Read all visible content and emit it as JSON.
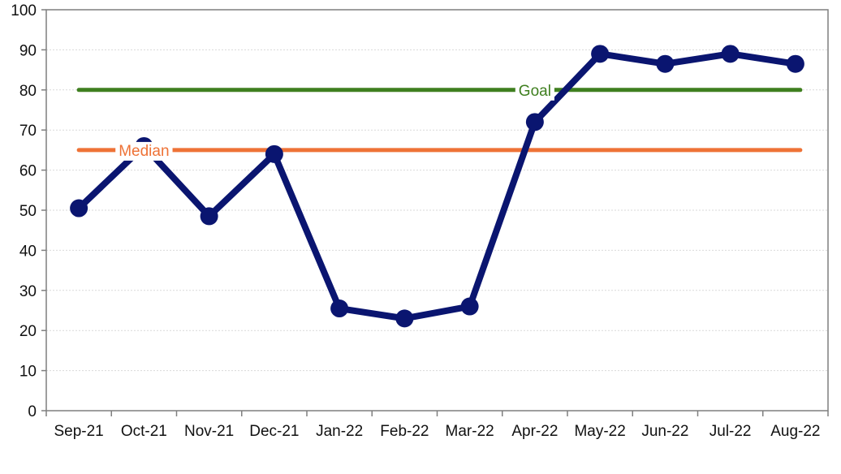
{
  "chart_data": {
    "type": "line",
    "categories": [
      "Sep-21",
      "Oct-21",
      "Nov-21",
      "Dec-21",
      "Jan-22",
      "Feb-22",
      "Mar-22",
      "Apr-22",
      "May-22",
      "Jun-22",
      "Jul-22",
      "Aug-22"
    ],
    "series": [
      {
        "values": [
          50.5,
          66,
          48.5,
          64,
          25.5,
          23,
          26,
          72,
          89,
          86.5,
          89,
          86.5
        ],
        "color": "#0a1570"
      }
    ],
    "reference_lines": [
      {
        "label": "Goal",
        "value": 80,
        "color": "#3f7f1f",
        "label_at_category": "Apr-22"
      },
      {
        "label": "Median",
        "value": 65,
        "color": "#ee7236",
        "label_at_category": "Oct-21"
      }
    ],
    "ylim": [
      0,
      100
    ],
    "yticks": [
      0,
      10,
      20,
      30,
      40,
      50,
      60,
      70,
      80,
      90,
      100
    ],
    "grid": true,
    "legend": "none",
    "title": "",
    "xlabel": "",
    "ylabel": ""
  }
}
